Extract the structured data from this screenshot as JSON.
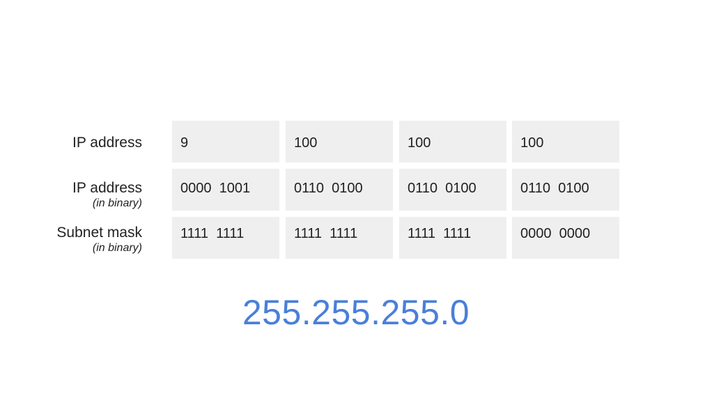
{
  "rows": [
    {
      "label": "IP address",
      "sublabel": "",
      "cells": [
        "9",
        "100",
        "100",
        "100"
      ]
    },
    {
      "label": "IP address",
      "sublabel": "(in binary)",
      "cells": [
        "0000  1001",
        "0110  0100",
        "0110  0100",
        "0110  0100"
      ]
    },
    {
      "label": "Subnet mask",
      "sublabel": "(in binary)",
      "cells": [
        "1111  1111",
        "1111  1111",
        "1111  1111",
        "0000  0000"
      ]
    }
  ],
  "result": "255.255.255.0",
  "colors": {
    "cell_background": "#efefef",
    "result_text": "#4a7fd9"
  }
}
